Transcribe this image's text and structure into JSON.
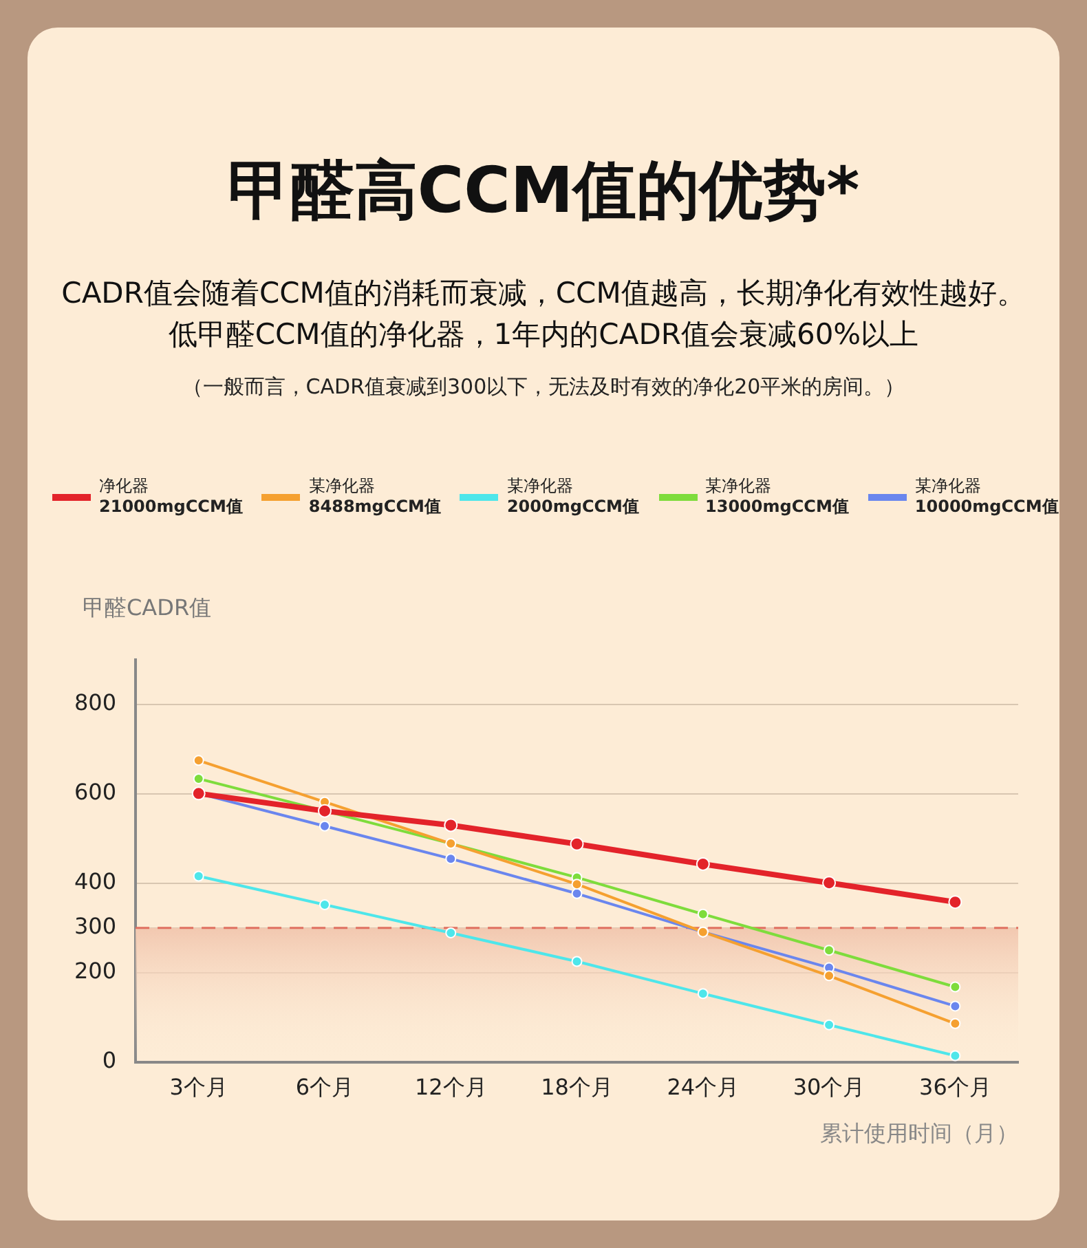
{
  "chart_data": {
    "type": "line",
    "title": "甲醛高CCM值的优势*",
    "subtitle": "CADR值会随着CCM值的消耗而衰减，CCM值越高，长期净化有效性越好。",
    "annotations": [
      "低甲醛CCM值的净化器，1年内的CADR值会衰减60%以上",
      "（一般而言，CADR值衰减到300以下，无法及时有效的净化20平米的房间。）"
    ],
    "xlabel": "累计使用时间（月）",
    "ylabel": "甲醛CADR值",
    "categories": [
      "3个月",
      "6个月",
      "12个月",
      "18个月",
      "24个月",
      "30个月",
      "36个月"
    ],
    "series": [
      {
        "name": "净化器\n21000mgCCM值",
        "color": "#e3232a",
        "values": [
          601,
          562,
          530,
          488,
          443,
          401,
          358
        ]
      },
      {
        "name": "某净化器\n8488mgCCM值",
        "color": "#f5a030",
        "values": [
          675,
          582,
          489,
          398,
          291,
          193,
          86
        ]
      },
      {
        "name": "某净化器\n2000mgCCM值",
        "color": "#4ee6ea",
        "values": [
          416,
          352,
          289,
          225,
          153,
          83,
          14
        ]
      },
      {
        "name": "某净化器\n13000mgCCM值",
        "color": "#7edc3c",
        "values": [
          634,
          562,
          489,
          413,
          331,
          250,
          168
        ]
      },
      {
        "name": "某净化器\n10000mgCCM值",
        "color": "#6a86ee",
        "values": [
          601,
          528,
          455,
          377,
          291,
          211,
          125
        ]
      }
    ],
    "ylim": [
      0,
      900
    ],
    "yticks": [
      0,
      200,
      300,
      400,
      600,
      800
    ],
    "ref_lines": [
      {
        "axis": "y",
        "value": 300,
        "color": "#e07060",
        "line_style": "dashed"
      }
    ],
    "bands": [
      {
        "axis": "y",
        "from": 0,
        "to": 300,
        "color": "#f2c8b0"
      }
    ],
    "grid": "y",
    "legend": "top",
    "marker": "circle"
  }
}
